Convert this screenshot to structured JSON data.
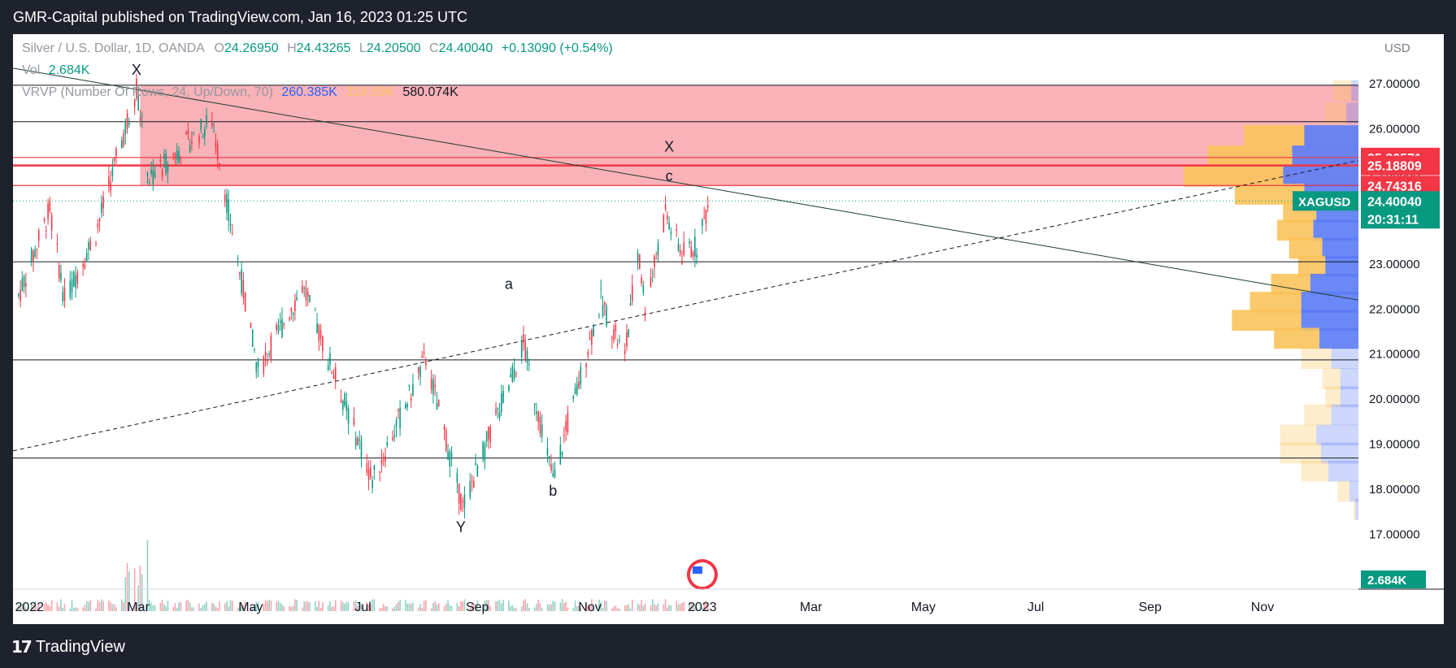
{
  "header": {
    "published": "GMR-Capital published on TradingView.com, Jan 16, 2023 01:25 UTC"
  },
  "legend": {
    "symbol": "Silver / U.S. Dollar, 1D, OANDA",
    "o_label": "O",
    "o": "24.26950",
    "h_label": "H",
    "h": "24.43265",
    "l_label": "L",
    "l": "24.20500",
    "c_label": "C",
    "c": "24.40040",
    "change": "+0.13090 (+0.54%)",
    "vol_label": "Vol",
    "vol": "2.684K",
    "vrvp_label": "VRVP (Number Of Rows, 24, Up/Down, 70)",
    "vrvp_up": "260.385K",
    "vrvp_down": "319.69K",
    "vrvp_total": "580.074K"
  },
  "footer": {
    "brand": "TradingView",
    "logo": "17"
  },
  "colors": {
    "up": "#089981",
    "down": "#f23645",
    "zone": "#f9aeb3",
    "level_red": "#f23645",
    "vp_up": "#5b7cf5",
    "vp_down": "#f9c35b"
  },
  "chart_data": {
    "type": "candlestick",
    "currency": "USD",
    "y_ticks": [
      "27.00000",
      "26.00000",
      "25.00000",
      "24.00000",
      "23.00000",
      "22.00000",
      "21.00000",
      "20.00000",
      "19.00000",
      "18.00000",
      "17.00000"
    ],
    "x_ticks": [
      "2022",
      "Mar",
      "May",
      "Jul",
      "Sep",
      "Nov",
      "2023",
      "Mar",
      "May",
      "Jul",
      "Sep",
      "Nov"
    ],
    "ylim": [
      16.5,
      27.6
    ],
    "price_labels": [
      {
        "text": "25.36571",
        "value": 25.36571,
        "color": "#f23645"
      },
      {
        "text": "25.18809",
        "value": 25.18809,
        "color": "#f23645"
      },
      {
        "text": "24.74316",
        "value": 24.74316,
        "color": "#f23645"
      }
    ],
    "last_price": {
      "symbol": "XAGUSD",
      "value": "24.40040",
      "countdown": "20:31:11"
    },
    "volume_label": "2.684K",
    "resistance_zone": [
      24.74316,
      26.97
    ],
    "horizontal_levels": [
      26.97,
      26.16,
      25.36571,
      25.18809,
      24.74316,
      23.05,
      20.87,
      18.69
    ],
    "swing_points": [
      {
        "date": "2022-01-03",
        "price": 22.3
      },
      {
        "date": "2022-01-20",
        "price": 24.2
      },
      {
        "date": "2022-01-28",
        "price": 22.2
      },
      {
        "date": "2022-02-14",
        "price": 23.7
      },
      {
        "date": "2022-03-08",
        "price": 26.9
      },
      {
        "date": "2022-03-15",
        "price": 24.9
      },
      {
        "date": "2022-04-18",
        "price": 26.2
      },
      {
        "date": "2022-05-13",
        "price": 20.6
      },
      {
        "date": "2022-06-06",
        "price": 22.5
      },
      {
        "date": "2022-07-14",
        "price": 18.2
      },
      {
        "date": "2022-08-12",
        "price": 20.9
      },
      {
        "date": "2022-09-01",
        "price": 17.6
      },
      {
        "date": "2022-10-04",
        "price": 21.2
      },
      {
        "date": "2022-10-20",
        "price": 18.2
      },
      {
        "date": "2022-11-15",
        "price": 22.2
      },
      {
        "date": "2022-11-28",
        "price": 20.9
      },
      {
        "date": "2022-12-05",
        "price": 23.3
      },
      {
        "date": "2022-12-09",
        "price": 22.1
      },
      {
        "date": "2022-12-20",
        "price": 24.1
      },
      {
        "date": "2022-12-29",
        "price": 23.2
      },
      {
        "date": "2023-01-06",
        "price": 23.4
      },
      {
        "date": "2023-01-13",
        "price": 24.4
      }
    ],
    "annotations": [
      {
        "text": "X",
        "date": "2022-03-08",
        "price": 27.2
      },
      {
        "text": "X",
        "date": "2022-12-22",
        "price": 25.5
      },
      {
        "text": "c",
        "date": "2022-12-22",
        "price": 24.85
      },
      {
        "text": "a",
        "date": "2022-09-26",
        "price": 22.45
      },
      {
        "text": "b",
        "date": "2022-10-20",
        "price": 17.85
      },
      {
        "text": "Y",
        "date": "2022-08-31",
        "price": 17.05
      }
    ],
    "trendlines": [
      {
        "style": "solid",
        "from": {
          "date": "2021-12-31",
          "price": 27.35
        },
        "to": {
          "date": "2023-12-31",
          "price": 22.2
        }
      },
      {
        "style": "dashed",
        "from": {
          "date": "2021-12-31",
          "price": 18.85
        },
        "to": {
          "date": "2023-12-31",
          "price": 25.3
        }
      }
    ],
    "volume_profile": [
      {
        "price": 26.85,
        "up": 12,
        "down": 30
      },
      {
        "price": 26.35,
        "up": 20,
        "down": 35
      },
      {
        "price": 25.85,
        "up": 90,
        "down": 100
      },
      {
        "price": 25.4,
        "up": 110,
        "down": 140
      },
      {
        "price": 24.95,
        "up": 125,
        "down": 165
      },
      {
        "price": 24.55,
        "up": 90,
        "down": 115
      },
      {
        "price": 24.15,
        "up": 70,
        "down": 55
      },
      {
        "price": 23.75,
        "up": 75,
        "down": 60
      },
      {
        "price": 23.35,
        "up": 60,
        "down": 55
      },
      {
        "price": 22.95,
        "up": 55,
        "down": 45
      },
      {
        "price": 22.55,
        "up": 80,
        "down": 65
      },
      {
        "price": 22.15,
        "up": 95,
        "down": 85
      },
      {
        "price": 21.75,
        "up": 95,
        "down": 115
      },
      {
        "price": 21.35,
        "up": 65,
        "down": 75
      },
      {
        "price": 20.9,
        "up": 45,
        "down": 50
      },
      {
        "price": 20.45,
        "up": 30,
        "down": 30
      },
      {
        "price": 20.05,
        "up": 30,
        "down": 25
      },
      {
        "price": 19.65,
        "up": 45,
        "down": 45
      },
      {
        "price": 19.2,
        "up": 70,
        "down": 60
      },
      {
        "price": 18.8,
        "up": 62,
        "down": 68
      },
      {
        "price": 18.4,
        "up": 50,
        "down": 45
      },
      {
        "price": 17.95,
        "up": 15,
        "down": 20
      },
      {
        "price": 17.55,
        "up": 5,
        "down": 3
      }
    ]
  }
}
